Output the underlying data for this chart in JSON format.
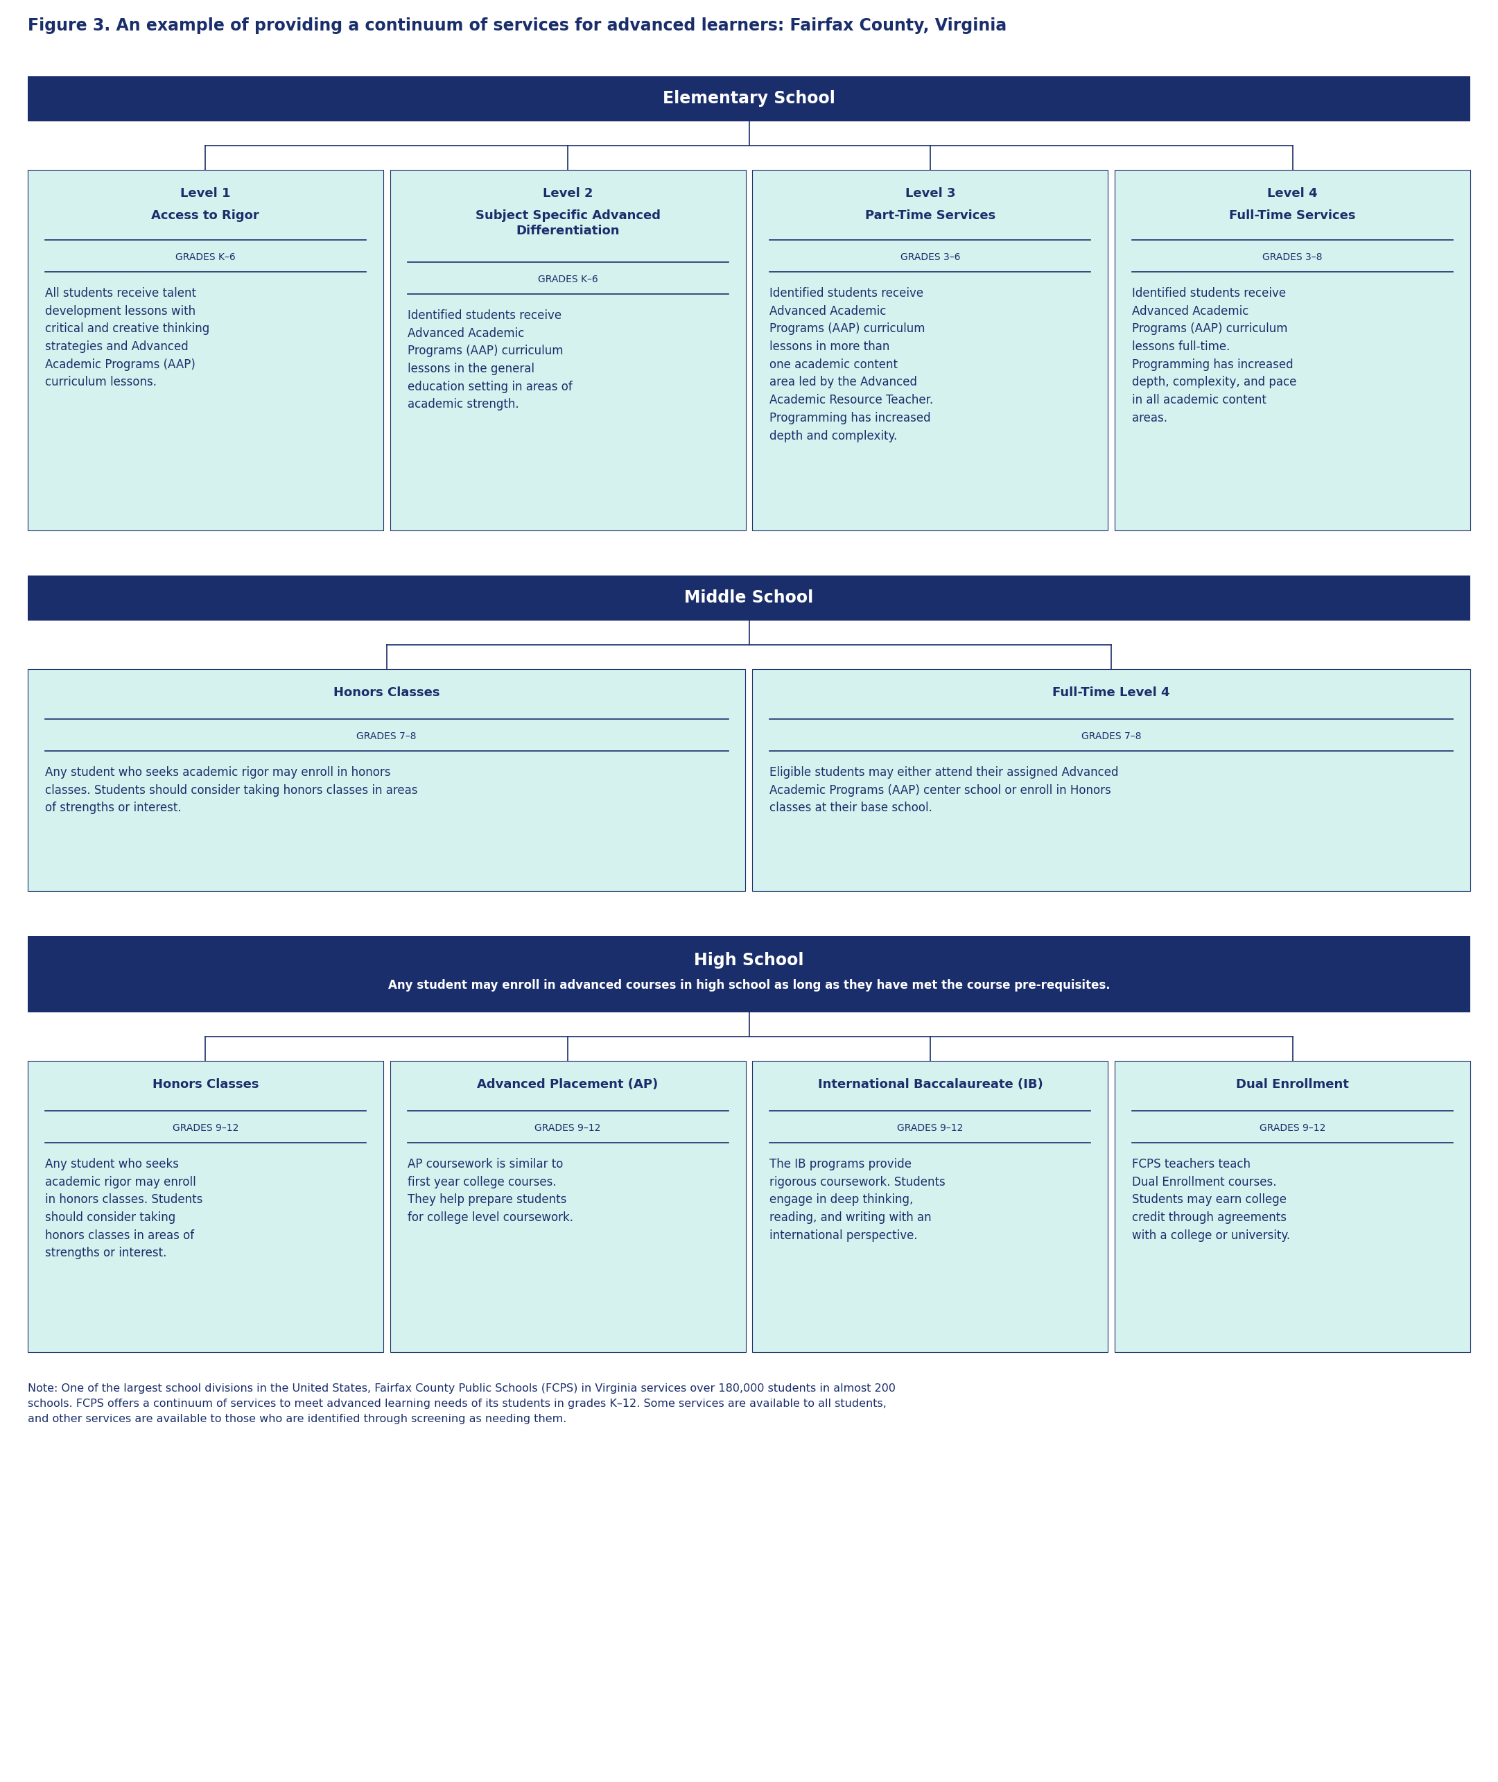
{
  "title": "Figure 3. An example of providing a continuum of services for advanced learners: Fairfax County, Virginia",
  "dark_blue": "#1a2e6b",
  "light_teal": "#d6f2ef",
  "elementary": {
    "header": "Elementary School",
    "boxes": [
      {
        "level": "Level 1",
        "name": "Access to Rigor",
        "name_lines": 1,
        "grades": "GRADES K–6",
        "body": "All students receive talent\ndevelopment lessons with\ncritical and creative thinking\nstrategies and Advanced\nAcademic Programs (AAP)\ncurriculum lessons."
      },
      {
        "level": "Level 2",
        "name": "Subject Specific Advanced\nDifferentiation",
        "name_lines": 2,
        "grades": "GRADES K–6",
        "body": "Identified students receive\nAdvanced Academic\nPrograms (AAP) curriculum\nlessons in the general\neducation setting in areas of\nacademic strength."
      },
      {
        "level": "Level 3",
        "name": "Part-Time Services",
        "name_lines": 1,
        "grades": "GRADES 3–6",
        "body": "Identified students receive\nAdvanced Academic\nPrograms (AAP) curriculum\nlessons in more than\none academic content\narea led by the Advanced\nAcademic Resource Teacher.\nProgramming has increased\ndepth and complexity."
      },
      {
        "level": "Level 4",
        "name": "Full-Time Services",
        "name_lines": 1,
        "grades": "GRADES 3–8",
        "body": "Identified students receive\nAdvanced Academic\nPrograms (AAP) curriculum\nlessons full-time.\nProgramming has increased\ndepth, complexity, and pace\nin all academic content\nareas."
      }
    ]
  },
  "middle": {
    "header": "Middle School",
    "boxes": [
      {
        "level": "Honors Classes",
        "name": null,
        "name_lines": 0,
        "grades": "GRADES 7–8",
        "body": "Any student who seeks academic rigor may enroll in honors\nclasses. Students should consider taking honors classes in areas\nof strengths or interest."
      },
      {
        "level": "Full-Time Level 4",
        "name": null,
        "name_lines": 0,
        "grades": "GRADES 7–8",
        "body": "Eligible students may either attend their assigned Advanced\nAcademic Programs (AAP) center school or enroll in Honors\nclasses at their base school."
      }
    ]
  },
  "high": {
    "header": "High School",
    "subheader": "Any student may enroll in advanced courses in high school as long as they have met the course pre-requisites.",
    "boxes": [
      {
        "level": "Honors Classes",
        "name": null,
        "name_lines": 0,
        "grades": "GRADES 9–12",
        "body": "Any student who seeks\nacademic rigor may enroll\nin honors classes. Students\nshould consider taking\nhonors classes in areas of\nstrengths or interest."
      },
      {
        "level": "Advanced Placement (AP)",
        "name": null,
        "name_lines": 0,
        "grades": "GRADES 9–12",
        "body": "AP coursework is similar to\nfirst year college courses.\nThey help prepare students\nfor college level coursework."
      },
      {
        "level": "International Baccalaureate (IB)",
        "name": null,
        "name_lines": 0,
        "grades": "GRADES 9–12",
        "body": "The IB programs provide\nrigorous coursework. Students\nengage in deep thinking,\nreading, and writing with an\ninternational perspective."
      },
      {
        "level": "Dual Enrollment",
        "name": null,
        "name_lines": 0,
        "grades": "GRADES 9–12",
        "body": "FCPS teachers teach\nDual Enrollment courses.\nStudents may earn college\ncredit through agreements\nwith a college or university."
      }
    ]
  },
  "note": "Note: One of the largest school divisions in the United States, Fairfax County Public Schools (FCPS) in Virginia services over 180,000 students in almost 200\nschools. FCPS offers a continuum of services to meet advanced learning needs of its students in grades K–12. Some services are available to all students,\nand other services are available to those who are identified through screening as needing them."
}
